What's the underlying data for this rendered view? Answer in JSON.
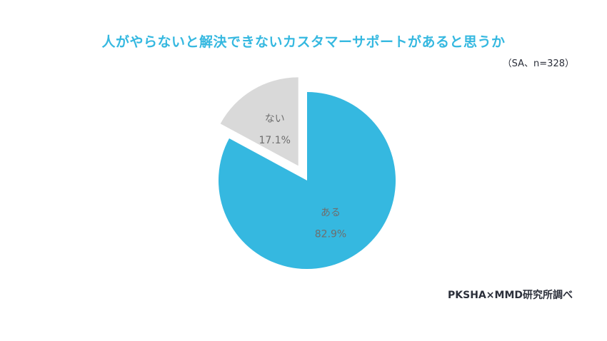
{
  "chart_data": {
    "type": "pie",
    "title": "人がやらないと解決できないカスタマーサポートがあると思うか",
    "note": "（SA、n=328）",
    "unit": "%",
    "start_angle_deg": 0,
    "direction": "clockwise",
    "exploded": "ない",
    "categories": [
      "ある",
      "ない"
    ],
    "values": [
      82.9,
      17.1
    ],
    "value_labels": [
      "82.9%",
      "17.1%"
    ],
    "colors": [
      "#35b8e0",
      "#d9d9d9"
    ],
    "label_colors": [
      "#6e6e6e",
      "#6e6e6e"
    ]
  },
  "source": "PKSHA×MMD研究所調べ"
}
